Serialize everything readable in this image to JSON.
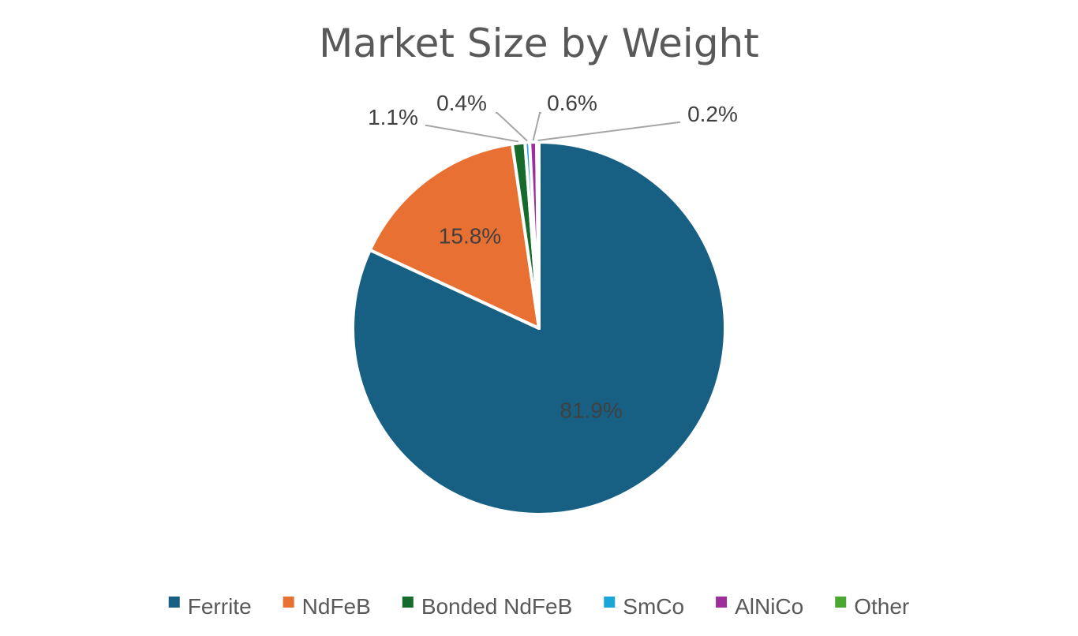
{
  "chart_data": {
    "type": "pie",
    "title": "Market Size by Weight",
    "categories": [
      "Ferrite",
      "NdFeB",
      "Bonded NdFeB",
      "SmCo",
      "AlNiCo",
      "Other"
    ],
    "values": [
      81.9,
      15.8,
      1.1,
      0.4,
      0.6,
      0.2
    ],
    "data_labels": [
      "81.9%",
      "15.8%",
      "1.1%",
      "0.4%",
      "0.6%",
      "0.2%"
    ],
    "colors": [
      "#176084",
      "#e87033",
      "#166a2c",
      "#1aa6d8",
      "#9c2f9c",
      "#4aa832"
    ],
    "start_angle_degrees": 0,
    "direction": "clockwise",
    "legend_position": "bottom",
    "slice_border_color": "#ffffff"
  }
}
